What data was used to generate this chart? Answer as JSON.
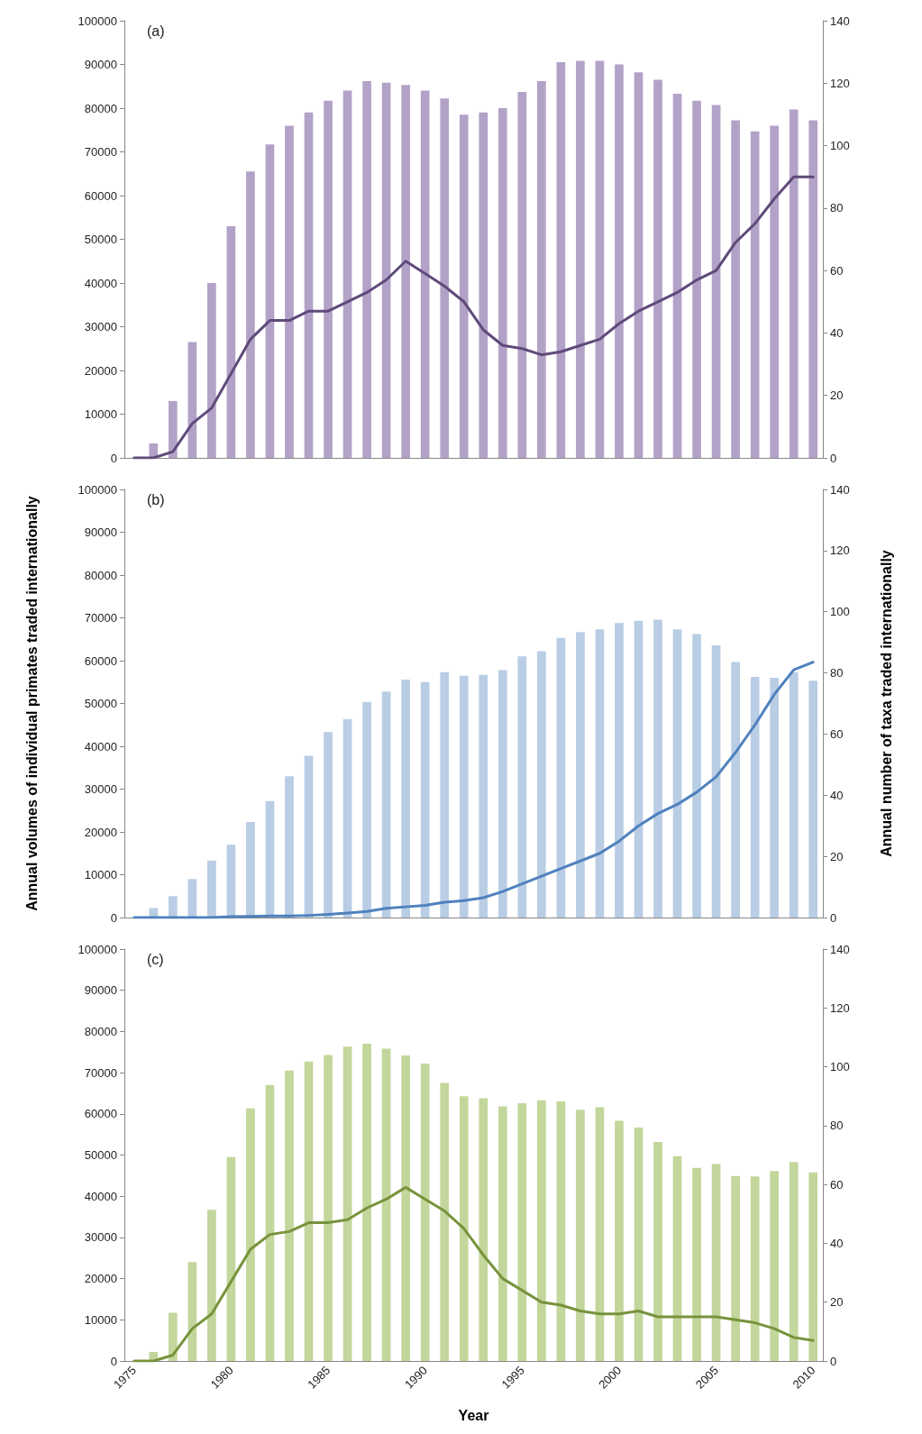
{
  "chart_data": [
    {
      "type": "bar",
      "annotations": [
        "(a)"
      ],
      "categories": [
        null,
        null,
        null,
        null,
        null,
        null,
        null,
        null,
        null,
        null,
        null,
        null,
        null,
        null,
        null,
        null,
        null,
        null,
        null,
        null,
        null,
        null,
        null,
        null,
        null,
        null,
        null,
        null,
        null,
        null,
        null,
        null,
        null,
        null,
        null,
        null
      ],
      "series": [
        {
          "color": "#b3a2c7",
          "values": [
            0,
            3300,
            13000,
            26500,
            40000,
            53000,
            65500,
            71700,
            76000,
            79000,
            81700,
            84000,
            86200,
            85800,
            85300,
            84000,
            82200,
            78500,
            79000,
            80000,
            83700,
            86200,
            90500,
            90800,
            90800,
            90000,
            88200,
            86500,
            83300,
            81700,
            80700,
            77200,
            74700,
            76000,
            79700,
            77200
          ]
        },
        {
          "type": "line",
          "axis": "y2",
          "color": "#604a7b",
          "values": [
            0,
            0,
            2,
            11,
            16,
            27,
            38,
            44,
            44,
            47,
            47,
            50,
            53,
            57,
            63,
            59,
            55,
            50,
            41,
            36,
            35,
            33,
            34,
            36,
            38,
            43,
            47,
            50,
            53,
            57,
            60,
            69,
            75,
            83,
            90,
            90
          ]
        }
      ],
      "ylim": [
        0,
        100000
      ],
      "yticks": [
        0,
        10000,
        20000,
        30000,
        40000,
        50000,
        60000,
        70000,
        80000,
        90000,
        100000
      ],
      "y2lim": [
        0,
        140
      ],
      "y2ticks": [
        0,
        20,
        40,
        60,
        80,
        100,
        120,
        140
      ],
      "tick_labels": "y",
      "grid": false,
      "marker": "none"
    },
    {
      "type": "bar",
      "annotations": [
        "(b)"
      ],
      "ylabel": "Annual volumes of individual primates traded internationally",
      "y2label": "Annual number of taxa traded internationally",
      "categories": [
        null,
        null,
        null,
        null,
        null,
        null,
        null,
        null,
        null,
        null,
        null,
        null,
        null,
        null,
        null,
        null,
        null,
        null,
        null,
        null,
        null,
        null,
        null,
        null,
        null,
        null,
        null,
        null,
        null,
        null,
        null,
        null,
        null,
        null,
        null,
        null
      ],
      "series": [
        {
          "color": "#b9cde5",
          "values": [
            0,
            2200,
            5000,
            9000,
            13300,
            17000,
            22300,
            27200,
            33000,
            37800,
            43300,
            46300,
            50300,
            52800,
            55600,
            55000,
            57300,
            56500,
            56700,
            57800,
            61000,
            62200,
            65300,
            66700,
            67300,
            68800,
            69300,
            69600,
            67300,
            66200,
            63600,
            59700,
            56200,
            56000,
            57300,
            55300
          ]
        },
        {
          "type": "line",
          "axis": "y2",
          "color": "#4f81bd",
          "values": [
            0,
            0,
            0,
            0,
            0,
            0.3,
            0.4,
            0.5,
            0.5,
            0.7,
            1,
            1.5,
            2,
            3,
            3.5,
            4,
            5,
            5.5,
            6.5,
            8.5,
            11,
            13.5,
            16,
            18.5,
            21,
            25,
            30,
            34,
            37,
            41,
            46,
            54,
            63,
            73,
            81,
            83.5
          ]
        }
      ],
      "ylim": [
        0,
        100000
      ],
      "yticks": [
        0,
        10000,
        20000,
        30000,
        40000,
        50000,
        60000,
        70000,
        80000,
        90000,
        100000
      ],
      "y2lim": [
        0,
        140
      ],
      "y2ticks": [
        0,
        20,
        40,
        60,
        80,
        100,
        120,
        140
      ],
      "tick_labels": "y",
      "grid": false,
      "marker": "none"
    },
    {
      "type": "bar",
      "annotations": [
        "(c)"
      ],
      "xlabel": "Year",
      "categories": [
        "1975",
        null,
        null,
        null,
        null,
        "1980",
        null,
        null,
        null,
        null,
        "1985",
        null,
        null,
        null,
        null,
        "1990",
        null,
        null,
        null,
        null,
        "1995",
        null,
        null,
        null,
        null,
        "2000",
        null,
        null,
        null,
        null,
        "2005",
        null,
        null,
        null,
        null,
        "2010"
      ],
      "series": [
        {
          "color": "#c3d69b",
          "values": [
            0,
            2200,
            11700,
            24000,
            36700,
            49500,
            61300,
            67000,
            70500,
            72700,
            74300,
            76300,
            77000,
            75800,
            74200,
            72200,
            67500,
            64300,
            63800,
            61800,
            62600,
            63300,
            63000,
            61000,
            61600,
            58300,
            56700,
            53200,
            49700,
            46900,
            47800,
            44900,
            44800,
            46100,
            48300,
            45800
          ]
        },
        {
          "type": "line",
          "axis": "y2",
          "color": "#77933c",
          "values": [
            0,
            0,
            2,
            11,
            16,
            27,
            38,
            43,
            44,
            47,
            47,
            48,
            52,
            55,
            59,
            55,
            51,
            45,
            36,
            28,
            24,
            20,
            19,
            17,
            16,
            16,
            17,
            15,
            15,
            15,
            15,
            14,
            13,
            11,
            8,
            7
          ]
        }
      ],
      "ylim": [
        0,
        100000
      ],
      "yticks": [
        0,
        10000,
        20000,
        30000,
        40000,
        50000,
        60000,
        70000,
        80000,
        90000,
        100000
      ],
      "y2lim": [
        0,
        140
      ],
      "y2ticks": [
        0,
        20,
        40,
        60,
        80,
        100,
        120,
        140
      ],
      "grid": false,
      "marker": "none"
    }
  ]
}
